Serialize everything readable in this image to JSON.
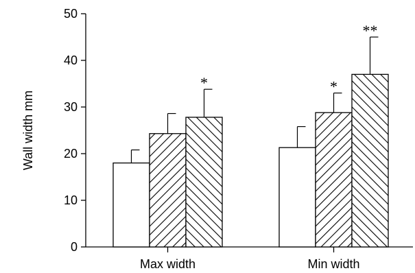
{
  "chart_data": {
    "type": "bar",
    "title": "",
    "xlabel": "",
    "ylabel": "Wall width mm",
    "ylim": [
      0,
      50
    ],
    "yticks": [
      0,
      10,
      20,
      30,
      40,
      50
    ],
    "categories": [
      "Max width",
      "Min width"
    ],
    "series": [
      {
        "fill": "none",
        "values": [
          18,
          21.3
        ],
        "errors": [
          2.8,
          4.5
        ],
        "marks": [
          "",
          ""
        ]
      },
      {
        "fill": "hatch-backslash",
        "values": [
          24.3,
          28.8
        ],
        "errors": [
          4.3,
          4.2
        ],
        "marks": [
          "",
          "*"
        ]
      },
      {
        "fill": "hatch-slash",
        "values": [
          27.8,
          37
        ],
        "errors": [
          6,
          8
        ],
        "marks": [
          "*",
          "**"
        ]
      }
    ],
    "grid": false,
    "legend": "none"
  }
}
